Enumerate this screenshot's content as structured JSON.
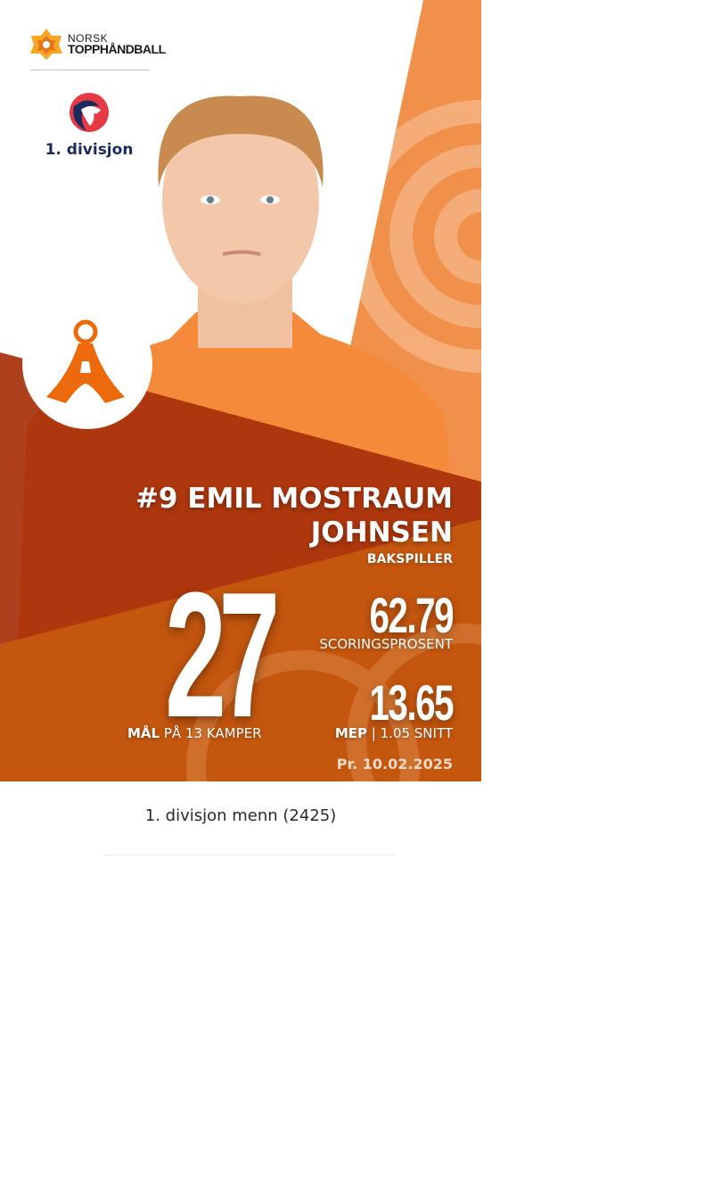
{
  "brand": {
    "line1": "NORSK",
    "line2": "TOPPHÅNDBALL"
  },
  "league_logo": {
    "label": "1. divisjon"
  },
  "player": {
    "number_name_line1": "#9 EMIL MOSTRAUM",
    "name_line2": "JOHNSEN",
    "position": "BAKSPILLER"
  },
  "stats": {
    "goals": "27",
    "goals_label_bold": "MÅL",
    "goals_label_rest": " PÅ 13 KAMPER",
    "scoring_pct": "62.79",
    "scoring_pct_label": "SCORINGSPROSENT",
    "mep": "13.65",
    "mep_label_bold": "MEP",
    "mep_label_rest": " | 1.05 SNITT"
  },
  "date": "Pr. 10.02.2025",
  "caption": "1. divisjon menn (2425)",
  "colors": {
    "orange": "#f0904a",
    "dark_red": "#a8300a",
    "burnt_orange": "#c4560e",
    "navy": "#1b2a5c",
    "club_orange": "#ec6a0c"
  }
}
